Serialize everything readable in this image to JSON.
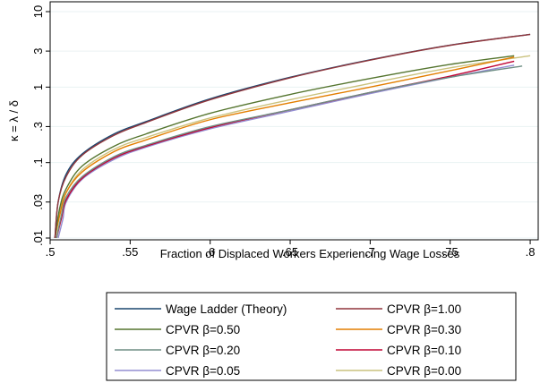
{
  "chart_data": {
    "type": "line",
    "title": "",
    "xlabel": "Fraction of Displaced Workers Experiencing Wage Losses",
    "ylabel": "κ = λ / δ",
    "xlim": [
      0.5,
      0.805
    ],
    "ylim": [
      0.01,
      10
    ],
    "yscale": "log",
    "grid": true,
    "legend_position": "bottom",
    "x_ticks": [
      {
        "value": 0.5,
        "label": ".5"
      },
      {
        "value": 0.55,
        "label": ".55"
      },
      {
        "value": 0.6,
        "label": ".6"
      },
      {
        "value": 0.65,
        "label": ".65"
      },
      {
        "value": 0.7,
        "label": ".7"
      },
      {
        "value": 0.75,
        "label": ".75"
      },
      {
        "value": 0.8,
        "label": ".8"
      }
    ],
    "y_ticks": [
      {
        "value": 0.01,
        "label": ".01"
      },
      {
        "value": 0.03,
        "label": ".03"
      },
      {
        "value": 0.1,
        "label": ".1"
      },
      {
        "value": 0.3,
        "label": ".3"
      },
      {
        "value": 1,
        "label": "1"
      },
      {
        "value": 3,
        "label": "3"
      },
      {
        "value": 10,
        "label": "10"
      }
    ],
    "series": [
      {
        "name": "Wage Ladder (Theory)",
        "color": "#1a476f",
        "x": [
          0.503,
          0.505,
          0.51,
          0.52,
          0.54,
          0.56,
          0.6,
          0.65,
          0.7,
          0.75,
          0.8
        ],
        "y": [
          0.01,
          0.03,
          0.07,
          0.13,
          0.24,
          0.35,
          0.7,
          1.35,
          2.3,
          3.6,
          5.0
        ]
      },
      {
        "name": "CPVR β=1.00",
        "color": "#90353b",
        "x": [
          0.503,
          0.505,
          0.51,
          0.52,
          0.54,
          0.56,
          0.6,
          0.65,
          0.7,
          0.75,
          0.8
        ],
        "y": [
          0.01,
          0.03,
          0.065,
          0.125,
          0.23,
          0.34,
          0.68,
          1.33,
          2.28,
          3.58,
          5.0
        ]
      },
      {
        "name": "CPVR β=0.50",
        "color": "#55752f",
        "x": [
          0.503,
          0.506,
          0.51,
          0.52,
          0.54,
          0.56,
          0.6,
          0.65,
          0.7,
          0.75,
          0.79
        ],
        "y": [
          0.01,
          0.025,
          0.045,
          0.09,
          0.165,
          0.24,
          0.45,
          0.8,
          1.3,
          2.0,
          2.6
        ]
      },
      {
        "name": "CPVR β=0.30",
        "color": "#e37e00",
        "x": [
          0.503,
          0.506,
          0.51,
          0.52,
          0.54,
          0.56,
          0.6,
          0.65,
          0.7,
          0.75,
          0.79
        ],
        "y": [
          0.01,
          0.02,
          0.04,
          0.075,
          0.14,
          0.2,
          0.37,
          0.62,
          1.0,
          1.65,
          2.5
        ]
      },
      {
        "name": "CPVR β=0.20",
        "color": "#6e8e84",
        "x": [
          0.504,
          0.507,
          0.51,
          0.52,
          0.54,
          0.56,
          0.6,
          0.65,
          0.7,
          0.75,
          0.795
        ],
        "y": [
          0.01,
          0.02,
          0.035,
          0.065,
          0.12,
          0.17,
          0.3,
          0.5,
          0.85,
          1.35,
          1.9
        ]
      },
      {
        "name": "CPVR β=0.10",
        "color": "#c10534",
        "x": [
          0.504,
          0.507,
          0.51,
          0.52,
          0.54,
          0.56,
          0.6,
          0.65,
          0.7,
          0.75,
          0.79
        ],
        "y": [
          0.01,
          0.018,
          0.032,
          0.062,
          0.115,
          0.165,
          0.29,
          0.5,
          0.85,
          1.4,
          2.2
        ]
      },
      {
        "name": "CPVR β=0.05",
        "color": "#938dd2",
        "x": [
          0.505,
          0.508,
          0.51,
          0.52,
          0.54,
          0.56,
          0.6,
          0.65,
          0.7,
          0.75,
          0.79
        ],
        "y": [
          0.01,
          0.018,
          0.03,
          0.06,
          0.11,
          0.16,
          0.28,
          0.48,
          0.82,
          1.35,
          1.95
        ]
      },
      {
        "name": "CPVR β=0.00",
        "color": "#cac27e",
        "x": [
          0.503,
          0.506,
          0.51,
          0.52,
          0.54,
          0.56,
          0.6,
          0.65,
          0.7,
          0.75,
          0.8
        ],
        "y": [
          0.01,
          0.022,
          0.04,
          0.08,
          0.15,
          0.215,
          0.39,
          0.68,
          1.12,
          1.8,
          2.6
        ]
      }
    ]
  }
}
